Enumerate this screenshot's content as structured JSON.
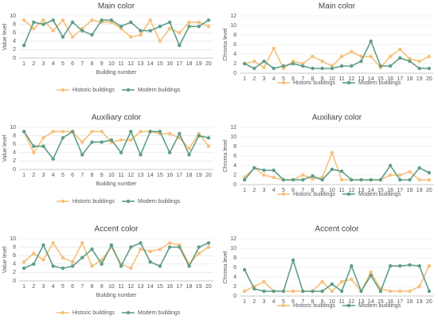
{
  "chart_data": [
    {
      "type": "line",
      "title": "Main color",
      "ylabel": "Value level",
      "xlabel": "Building number",
      "categories": [
        "1",
        "2",
        "3",
        "4",
        "5",
        "6",
        "7",
        "8",
        "9",
        "10",
        "11",
        "12",
        "13",
        "14",
        "15",
        "16",
        "17",
        "18",
        "19",
        "20"
      ],
      "ylim": [
        0,
        10
      ],
      "yticks": [
        0,
        2,
        4,
        6,
        8,
        10
      ],
      "grid": true,
      "series": [
        {
          "name": "Historic buildings",
          "color": "#f6c07a",
          "values": [
            9,
            7,
            9,
            6.5,
            9,
            5,
            7,
            9,
            8.5,
            8.5,
            7,
            5,
            5.5,
            9,
            4,
            7,
            6,
            8.5,
            8.5,
            7.5
          ]
        },
        {
          "name": "Modern buildings",
          "color": "#5e9e86",
          "values": [
            3,
            8.5,
            8,
            9,
            5,
            8.5,
            6.5,
            5.5,
            9,
            9,
            7.5,
            8.5,
            6.5,
            6.5,
            7.5,
            8.5,
            3,
            7.5,
            7.5,
            9
          ]
        }
      ]
    },
    {
      "type": "line",
      "title": "Main color",
      "ylabel": "Chroma level",
      "categories": [
        "1",
        "2",
        "3",
        "4",
        "5",
        "6",
        "7",
        "8",
        "9",
        "10",
        "11",
        "12",
        "13",
        "14",
        "15",
        "16",
        "17",
        "18",
        "19",
        "20"
      ],
      "ylim": [
        0,
        12
      ],
      "yticks": [
        0,
        2,
        4,
        6,
        8,
        10,
        12
      ],
      "grid": true,
      "series": [
        {
          "name": "Historic buildings",
          "color": "#f6c07a",
          "values": [
            2,
            2.5,
            1.2,
            5.2,
            1,
            2.5,
            2,
            3.5,
            2.5,
            1.5,
            3.5,
            4.5,
            3.5,
            3.5,
            1.2,
            3.5,
            5,
            3,
            2.5,
            3.5
          ]
        },
        {
          "name": "Modern buildings",
          "color": "#5e9e86",
          "values": [
            2,
            1,
            2.5,
            1,
            1.5,
            2,
            1.5,
            1,
            1,
            1,
            1.5,
            1.5,
            2.5,
            6.7,
            1.5,
            1.5,
            3.2,
            2.5,
            1,
            1
          ]
        }
      ]
    },
    {
      "type": "line",
      "title": "Auxiliary color",
      "ylabel": "Value level",
      "xlabel": "Building number",
      "categories": [
        "1",
        "2",
        "3",
        "4",
        "5",
        "6",
        "7",
        "8",
        "9",
        "10",
        "11",
        "12",
        "13",
        "14",
        "15",
        "16",
        "17",
        "18",
        "19",
        "20"
      ],
      "ylim": [
        0,
        10
      ],
      "yticks": [
        0,
        2,
        4,
        6,
        8,
        10
      ],
      "grid": true,
      "series": [
        {
          "name": "Historic buildings",
          "color": "#f6c07a",
          "values": [
            9,
            4,
            7.5,
            9,
            9,
            9,
            6.5,
            9,
            9,
            6.5,
            7,
            7,
            9,
            9,
            8.5,
            8.5,
            7.5,
            5,
            8.5,
            5.5
          ]
        },
        {
          "name": "Modern buildings",
          "color": "#5e9e86",
          "values": [
            9,
            5.5,
            5.5,
            2.5,
            7.5,
            9,
            3.5,
            6.5,
            6.5,
            7,
            4,
            9,
            3.5,
            9,
            9,
            4,
            8.5,
            3.5,
            8,
            7.5
          ]
        }
      ]
    },
    {
      "type": "line",
      "title": "Auxiliary color",
      "ylabel": "Chroma level",
      "categories": [
        "1",
        "2",
        "3",
        "4",
        "5",
        "6",
        "7",
        "8",
        "9",
        "10",
        "11",
        "12",
        "13",
        "14",
        "15",
        "16",
        "17",
        "18",
        "19",
        "20"
      ],
      "ylim": [
        0,
        12
      ],
      "yticks": [
        0,
        2,
        4,
        6,
        8,
        10,
        12
      ],
      "grid": true,
      "series": [
        {
          "name": "Historic buildings",
          "color": "#f6c07a",
          "values": [
            1.5,
            3.5,
            2,
            1.5,
            1,
            1,
            2,
            1.2,
            1.5,
            6.7,
            1,
            1,
            1,
            1,
            1,
            2,
            2,
            2.7,
            1,
            1
          ]
        },
        {
          "name": "Modern buildings",
          "color": "#5e9e86",
          "values": [
            1,
            3.5,
            3,
            3,
            1,
            1,
            1,
            1.8,
            1,
            3.2,
            2.8,
            1,
            1,
            1,
            1,
            4,
            1,
            1,
            3.5,
            2.5
          ]
        }
      ]
    },
    {
      "type": "line",
      "title": "Accent color",
      "ylabel": "Value level",
      "xlabel": "Building number",
      "categories": [
        "1",
        "2",
        "3",
        "4",
        "5",
        "6",
        "7",
        "8",
        "9",
        "10",
        "11",
        "12",
        "13",
        "14",
        "15",
        "16",
        "17",
        "18",
        "19",
        "20"
      ],
      "ylim": [
        0,
        10
      ],
      "yticks": [
        0,
        2,
        4,
        6,
        8,
        10
      ],
      "grid": true,
      "series": [
        {
          "name": "Historic buildings",
          "color": "#f6c07a",
          "values": [
            4.5,
            6.5,
            5,
            9,
            5.5,
            4.5,
            9,
            3.5,
            5,
            8,
            4,
            3,
            7.5,
            7,
            7.5,
            9,
            8.5,
            4,
            6.5,
            8
          ]
        },
        {
          "name": "Modern buildings",
          "color": "#5e9e86",
          "values": [
            3,
            4,
            8.5,
            3.5,
            3,
            3.5,
            5.5,
            7.5,
            4,
            8.5,
            3.5,
            8,
            9,
            4.5,
            3.5,
            8,
            8,
            3.5,
            8,
            9
          ]
        }
      ]
    },
    {
      "type": "line",
      "title": "Accent color",
      "ylabel": "Chroma level",
      "categories": [
        "1",
        "2",
        "3",
        "4",
        "5",
        "6",
        "7",
        "8",
        "9",
        "10",
        "11",
        "12",
        "13",
        "14",
        "15",
        "16",
        "17",
        "18",
        "19",
        "20"
      ],
      "ylim": [
        0,
        12
      ],
      "yticks": [
        0,
        2,
        4,
        6,
        8,
        10,
        12
      ],
      "grid": true,
      "series": [
        {
          "name": "Historic buildings",
          "color": "#f6c07a",
          "values": [
            1,
            2,
            3,
            1,
            1,
            1,
            1,
            1,
            3,
            1,
            3,
            3.5,
            1,
            5,
            1.5,
            1,
            1,
            1,
            2,
            6.3
          ]
        },
        {
          "name": "Modern buildings",
          "color": "#5e9e86",
          "values": [
            5.5,
            1.5,
            1,
            1,
            1,
            7.5,
            1,
            1,
            1,
            2.5,
            1,
            6.3,
            1,
            4.3,
            1,
            6.3,
            6.3,
            6.5,
            6.3,
            1
          ]
        }
      ]
    }
  ]
}
